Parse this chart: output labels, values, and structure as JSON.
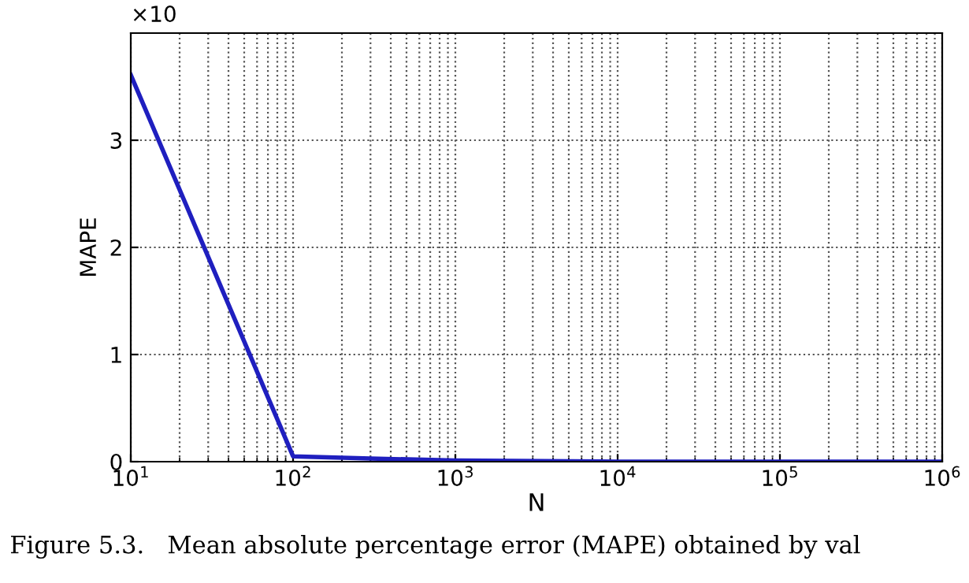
{
  "chart_data": {
    "type": "line",
    "xlabel": "N",
    "ylabel": "MAPE",
    "log": "x",
    "x": [
      10,
      100,
      300,
      1000,
      10000,
      100000,
      1000000
    ],
    "series": [
      {
        "color": "#1f1fbf",
        "values": [
          3.61,
          0.05,
          0.03,
          0.01,
          0,
          0,
          0
        ]
      }
    ],
    "xlim": [
      10,
      1000000
    ],
    "xticks": [
      {
        "value": 10,
        "label": "10$^{1}$"
      },
      {
        "value": 100,
        "label": "10$^{2}$"
      },
      {
        "value": 1000,
        "label": "10$^{3}$"
      },
      {
        "value": 10000,
        "label": "10$^{4}$"
      },
      {
        "value": 100000,
        "label": "10$^{5}$"
      },
      {
        "value": 1000000,
        "label": "10$^{6}$"
      }
    ],
    "ylim": [
      0,
      4
    ],
    "yticks": [
      0,
      1,
      2,
      3
    ],
    "grid": true,
    "marker": "none",
    "line_style": "solid",
    "annotations": [
      "×10",
      "Figure 5.3.   Mean absolute percentage error (MAPE) obtained by val"
    ]
  }
}
